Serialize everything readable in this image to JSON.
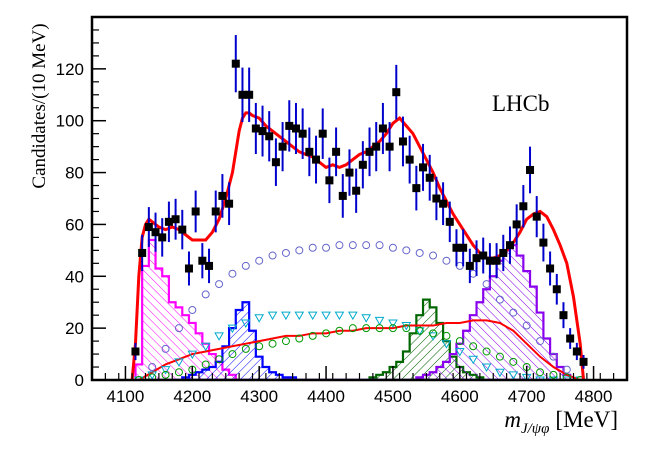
{
  "chart_data": {
    "type": "bar",
    "experiment_label": "LHCb",
    "ylabel": "Candidates/(10 MeV)",
    "xlabel_main": "m",
    "xlabel_sub": "J/ψφ",
    "xlabel_unit": "[MeV]",
    "xlim": [
      4050,
      4850
    ],
    "ylim": [
      0,
      140
    ],
    "x_ticks": [
      4100,
      4200,
      4300,
      4400,
      4500,
      4600,
      4700,
      4800
    ],
    "y_ticks": [
      0,
      20,
      40,
      60,
      80,
      100,
      120
    ],
    "data_points": {
      "x": [
        4115,
        4125,
        4135,
        4145,
        4155,
        4165,
        4175,
        4185,
        4195,
        4205,
        4215,
        4225,
        4235,
        4245,
        4255,
        4265,
        4275,
        4285,
        4295,
        4305,
        4315,
        4325,
        4335,
        4345,
        4355,
        4365,
        4375,
        4385,
        4395,
        4405,
        4415,
        4425,
        4435,
        4445,
        4455,
        4465,
        4475,
        4485,
        4495,
        4505,
        4515,
        4525,
        4535,
        4545,
        4555,
        4565,
        4575,
        4585,
        4595,
        4605,
        4615,
        4625,
        4635,
        4645,
        4655,
        4665,
        4675,
        4685,
        4695,
        4705,
        4715,
        4725,
        4735,
        4745,
        4755,
        4765,
        4775,
        4785
      ],
      "y": [
        11,
        49,
        59,
        57,
        55,
        61,
        62,
        58,
        43,
        65,
        46,
        44,
        65,
        71,
        68,
        122,
        110,
        110,
        97,
        96,
        94,
        84,
        90,
        98,
        97,
        95,
        88,
        85,
        95,
        77,
        88,
        71,
        80,
        73,
        83,
        88,
        90,
        97,
        90,
        111,
        92,
        85,
        74,
        82,
        78,
        70,
        68,
        61,
        51,
        51,
        44,
        47,
        48,
        46,
        46,
        49,
        52,
        60,
        67,
        81,
        63,
        53,
        43,
        35,
        25,
        16,
        11,
        7
      ]
    },
    "total_fit": {
      "x": [
        4110,
        4115,
        4120,
        4125,
        4130,
        4135,
        4140,
        4145,
        4150,
        4160,
        4170,
        4180,
        4190,
        4200,
        4210,
        4220,
        4230,
        4240,
        4250,
        4260,
        4265,
        4270,
        4275,
        4280,
        4285,
        4290,
        4300,
        4310,
        4320,
        4330,
        4340,
        4350,
        4360,
        4370,
        4380,
        4390,
        4400,
        4410,
        4420,
        4430,
        4440,
        4450,
        4460,
        4470,
        4480,
        4490,
        4500,
        4510,
        4520,
        4530,
        4540,
        4550,
        4560,
        4570,
        4580,
        4590,
        4600,
        4610,
        4620,
        4630,
        4640,
        4650,
        4660,
        4670,
        4680,
        4690,
        4700,
        4710,
        4720,
        4730,
        4740,
        4750,
        4760,
        4770,
        4780,
        4785
      ],
      "y": [
        0,
        14,
        40,
        55,
        60,
        62,
        61,
        60,
        59,
        58,
        59,
        58,
        56,
        54,
        54,
        54,
        57,
        62,
        70,
        80,
        88,
        96,
        101,
        103,
        103,
        102,
        101,
        98,
        96,
        94,
        92,
        90,
        88,
        87,
        86,
        84,
        82,
        83,
        82,
        83,
        85,
        87,
        88,
        90,
        92,
        95,
        99,
        101,
        98,
        95,
        90,
        85,
        80,
        74,
        69,
        64,
        60,
        56,
        52,
        49,
        47,
        47,
        48,
        50,
        53,
        57,
        62,
        64,
        65,
        63,
        58,
        52,
        45,
        32,
        14,
        0
      ]
    },
    "components": {
      "x_binned": [
        4120,
        4130,
        4140,
        4150,
        4160,
        4170,
        4180,
        4190,
        4200,
        4210,
        4220,
        4230,
        4240,
        4250,
        4260,
        4270,
        4280,
        4290,
        4300,
        4310,
        4320,
        4330,
        4340,
        4350,
        4360,
        4370,
        4380,
        4390,
        4400,
        4410,
        4420,
        4430,
        4440,
        4450,
        4460,
        4470,
        4480,
        4490,
        4500,
        4510,
        4520,
        4530,
        4540,
        4550,
        4560,
        4570,
        4580,
        4590,
        4600,
        4610,
        4620,
        4630,
        4640,
        4650,
        4660,
        4670,
        4680,
        4690,
        4700,
        4710,
        4720,
        4730,
        4740,
        4750,
        4760,
        4770,
        4780
      ],
      "magenta_hatched": [
        6,
        44,
        54,
        43,
        40,
        30,
        28,
        25,
        22,
        18,
        14,
        10,
        7,
        4,
        2,
        0,
        0,
        0,
        0,
        0,
        0,
        0,
        0,
        0,
        0,
        0,
        0,
        0,
        0,
        0,
        0,
        0,
        0,
        0,
        0,
        0,
        0,
        0,
        0,
        0,
        0,
        0,
        0,
        0,
        0,
        0,
        0,
        0,
        0,
        0,
        0,
        0,
        0,
        0,
        0,
        0,
        0,
        0,
        0,
        0,
        0,
        0,
        0,
        0,
        0,
        0,
        0
      ],
      "blue_hatched": [
        0,
        0,
        0,
        0,
        0,
        0,
        0,
        1,
        2,
        3,
        4,
        5,
        7,
        13,
        20,
        27,
        30,
        19,
        9,
        5,
        3,
        2,
        1,
        1,
        0,
        0,
        0,
        0,
        0,
        0,
        0,
        0,
        0,
        0,
        0,
        0,
        0,
        0,
        0,
        0,
        0,
        0,
        0,
        0,
        0,
        0,
        0,
        0,
        0,
        0,
        0,
        0,
        0,
        0,
        0,
        0,
        0,
        0,
        0,
        0,
        0,
        0,
        0,
        0,
        0,
        0,
        0
      ],
      "green_hatched": [
        0,
        0,
        0,
        0,
        0,
        0,
        0,
        0,
        0,
        0,
        0,
        0,
        0,
        0,
        0,
        0,
        0,
        0,
        0,
        0,
        0,
        0,
        0,
        0,
        0,
        0,
        0,
        0,
        0,
        0,
        0,
        0,
        0,
        0,
        0,
        1,
        2,
        3,
        5,
        7,
        11,
        18,
        25,
        31,
        28,
        22,
        15,
        9,
        5,
        3,
        2,
        1,
        0,
        0,
        0,
        0,
        0,
        0,
        0,
        0,
        0,
        0,
        0,
        0,
        0,
        0,
        0
      ],
      "purple_hatched": [
        0,
        0,
        0,
        0,
        0,
        0,
        0,
        0,
        0,
        0,
        0,
        0,
        0,
        0,
        0,
        0,
        0,
        0,
        0,
        0,
        0,
        0,
        0,
        0,
        0,
        0,
        0,
        0,
        0,
        0,
        0,
        0,
        0,
        0,
        0,
        0,
        0,
        0,
        0,
        0,
        0,
        0,
        1,
        2,
        3,
        5,
        7,
        10,
        14,
        19,
        25,
        30,
        35,
        40,
        46,
        50,
        52,
        48,
        42,
        36,
        26,
        16,
        10,
        5,
        2,
        0,
        0
      ],
      "x_smooth": [
        4120,
        4140,
        4160,
        4180,
        4200,
        4220,
        4240,
        4260,
        4280,
        4300,
        4320,
        4340,
        4360,
        4380,
        4400,
        4420,
        4440,
        4460,
        4480,
        4500,
        4520,
        4540,
        4560,
        4580,
        4600,
        4620,
        4640,
        4660,
        4680,
        4700,
        4720,
        4740,
        4760,
        4780
      ],
      "blue_circles": [
        0,
        5,
        12,
        20,
        27,
        33,
        37,
        41,
        44,
        46,
        48,
        49,
        50,
        51,
        51,
        52,
        52,
        52,
        52,
        51,
        50,
        49,
        48,
        46,
        44,
        41,
        37,
        31,
        26,
        21,
        15,
        9,
        4,
        0
      ],
      "cyan_triangles": [
        0,
        2,
        4,
        7,
        10,
        13,
        17,
        20,
        22,
        24,
        25,
        25,
        25,
        25,
        25,
        25,
        25,
        24,
        23,
        22,
        21,
        19,
        17,
        14,
        11,
        8,
        5,
        3,
        2,
        1,
        0,
        0,
        0,
        0
      ],
      "red_line": [
        0,
        3,
        6,
        8,
        10,
        11,
        12,
        13,
        14,
        15,
        16,
        17,
        17,
        18,
        18,
        19,
        19,
        20,
        20,
        20,
        21,
        21,
        21,
        22,
        22,
        23,
        23,
        22,
        19,
        14,
        9,
        5,
        2,
        0
      ],
      "green_circles": [
        0,
        1,
        2,
        3,
        4,
        6,
        8,
        10,
        12,
        13,
        14,
        15,
        16,
        17,
        18,
        19,
        20,
        20,
        20,
        20,
        20,
        19,
        18,
        17,
        15,
        13,
        11,
        9,
        7,
        5,
        3,
        2,
        1,
        0
      ]
    },
    "colors": {
      "data": "#000000",
      "error_bar": "#0000cc",
      "total_fit": "#ff0000",
      "magenta": "#ff00ff",
      "blue": "#0000ff",
      "green": "#006600",
      "purple": "#8800ee",
      "blue_circles": "#6666cc",
      "cyan": "#00aacc",
      "green_circles": "#009900"
    },
    "grid": false,
    "legend": "none"
  }
}
